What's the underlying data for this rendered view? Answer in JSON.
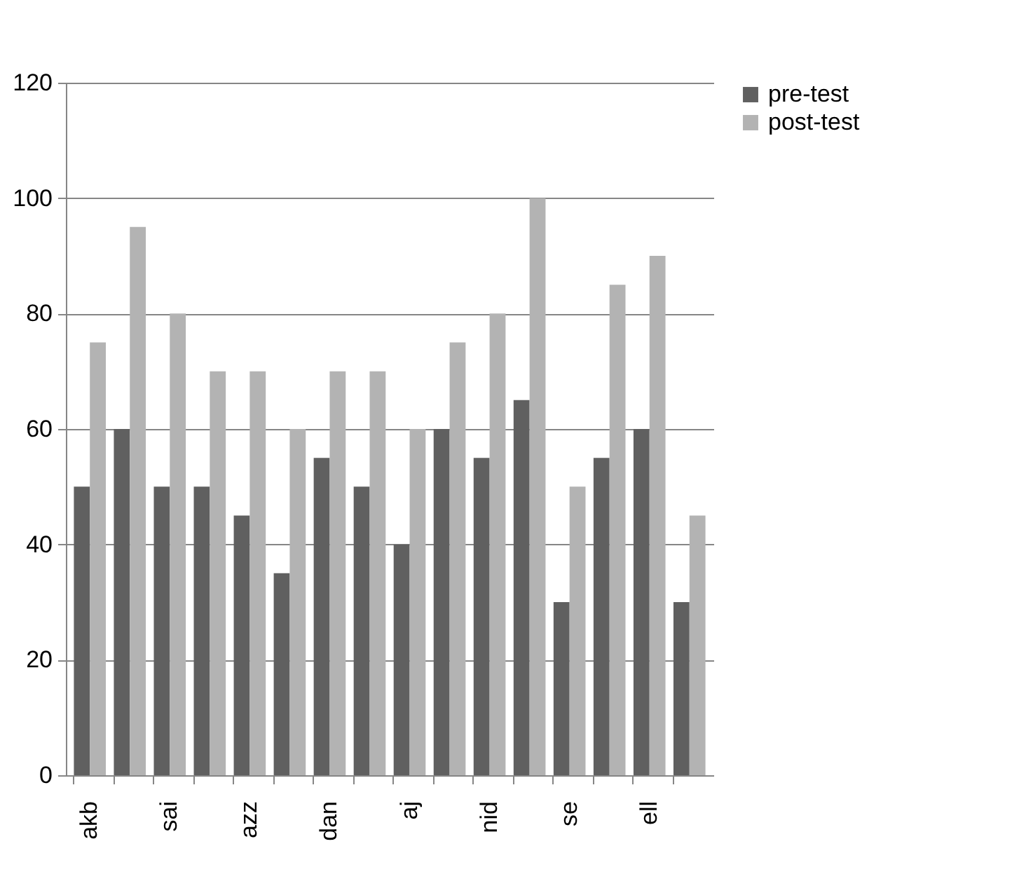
{
  "chart_data": {
    "type": "bar",
    "categories": [
      "akb",
      null,
      "sai",
      null,
      "azz",
      null,
      "dan",
      null,
      "aj",
      null,
      "nid",
      null,
      "se",
      null,
      "ell",
      null
    ],
    "series": [
      {
        "name": "pre-test",
        "color": "#606060",
        "values": [
          50,
          60,
          50,
          50,
          45,
          35,
          55,
          50,
          40,
          60,
          55,
          65,
          30,
          55,
          60,
          30
        ]
      },
      {
        "name": "post-test",
        "color": "#b3b3b3",
        "values": [
          75,
          95,
          80,
          70,
          70,
          60,
          70,
          70,
          60,
          75,
          80,
          100,
          50,
          85,
          90,
          45
        ]
      }
    ],
    "ylim": [
      0,
      120
    ],
    "yticks": [
      0,
      20,
      40,
      60,
      80,
      100,
      120
    ],
    "grid": "y",
    "legend": "right"
  }
}
